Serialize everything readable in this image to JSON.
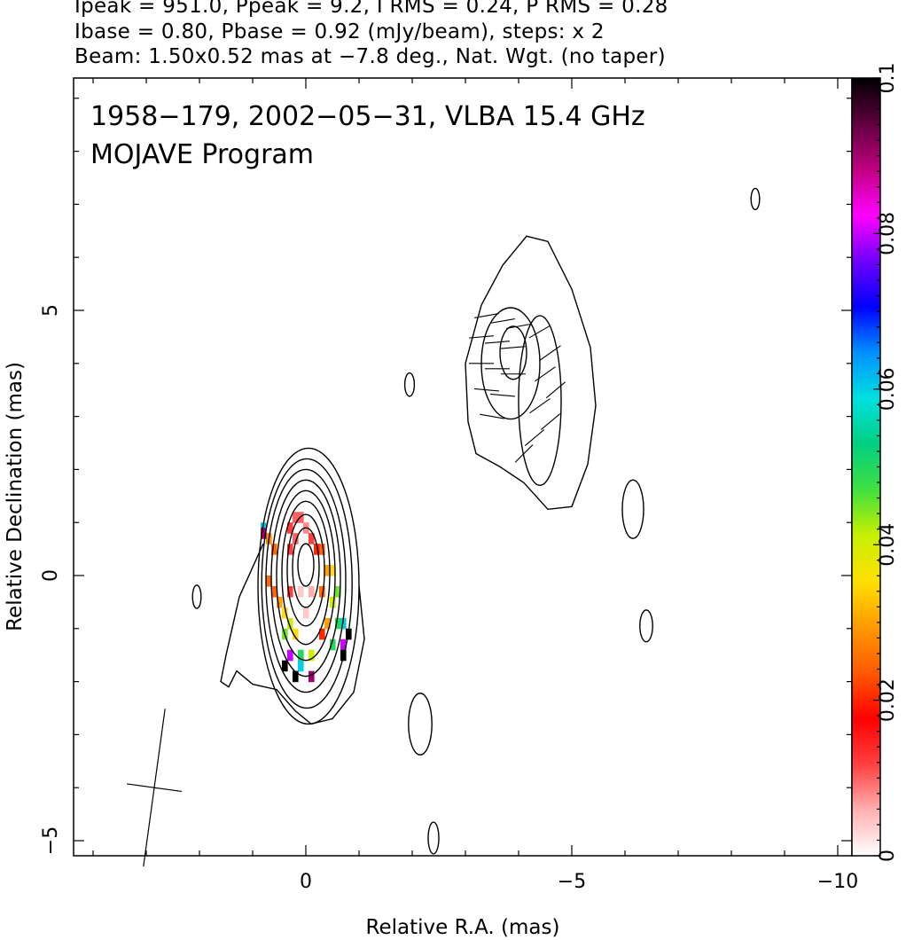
{
  "header": {
    "line1": "Ipeak = 951.0, Ppeak = 9.2, I RMS = 0.24, P RMS = 0.28",
    "line2": "Ibase = 0.80, Pbase = 0.92 (mJy/beam), steps: x 2",
    "line3": "Beam: 1.50x0.52 mas at −7.8 deg., Nat. Wgt. (no taper)"
  },
  "chart_data": {
    "type": "heatmap",
    "title_line1": "1958−179, 2002−05−31, VLBA 15.4 GHz",
    "title_line2": "MOJAVE Program",
    "xlabel": "Relative R.A. (mas)",
    "ylabel": "Relative Declination (mas)",
    "xlim": [
      4.4,
      -10.2
    ],
    "ylim": [
      -5.3,
      9.4
    ],
    "x_ticks": [
      0,
      -5,
      -10
    ],
    "x_tick_labels": [
      "0",
      "−5",
      "−10"
    ],
    "y_ticks": [
      -5,
      0,
      5
    ],
    "y_tick_labels": [
      "−5",
      "0",
      "5"
    ],
    "colorbar": {
      "range": [
        0,
        0.1
      ],
      "ticks": [
        0,
        0.02,
        0.04,
        0.06,
        0.08,
        0.1
      ],
      "tick_labels": [
        "0",
        "0.02",
        "0.04",
        "0.06",
        "0.08",
        "0.1"
      ],
      "colors": [
        "#ffffff",
        "#ffb0b0",
        "#ff4040",
        "#ff0000",
        "#ff5a00",
        "#ff9a00",
        "#ffe000",
        "#c8f000",
        "#40e040",
        "#00d080",
        "#00e0e0",
        "#0090ff",
        "#0000ff",
        "#7000ff",
        "#ff00ff",
        "#c00080",
        "#600040",
        "#000000"
      ]
    },
    "contours": [
      {
        "component": "core",
        "x": 0.0,
        "y": 0.2,
        "rx": 0.15,
        "ry": 0.4
      },
      {
        "component": "core",
        "x": 0.0,
        "y": 0.15,
        "rx": 0.25,
        "ry": 0.75
      },
      {
        "component": "core",
        "x": 0.0,
        "y": 0.1,
        "rx": 0.35,
        "ry": 1.05
      },
      {
        "component": "core",
        "x": 0.0,
        "y": 0.05,
        "rx": 0.45,
        "ry": 1.35
      },
      {
        "component": "core",
        "x": 0.0,
        "y": 0.0,
        "rx": 0.55,
        "ry": 1.6
      },
      {
        "component": "core",
        "x": 0.0,
        "y": -0.05,
        "rx": 0.65,
        "ry": 1.85
      },
      {
        "component": "core",
        "x": 0.0,
        "y": -0.1,
        "rx": 0.75,
        "ry": 2.1
      },
      {
        "component": "core",
        "x": -0.02,
        "y": -0.15,
        "rx": 0.85,
        "ry": 2.35
      },
      {
        "component": "core",
        "x": -0.05,
        "y": -0.2,
        "rx": 0.95,
        "ry": 2.6
      },
      {
        "component": "jet",
        "x": -3.9,
        "y": 4.2,
        "rx": 0.25,
        "ry": 0.5
      },
      {
        "component": "jet",
        "x": -3.85,
        "y": 4.0,
        "rx": 0.55,
        "ry": 1.05
      },
      {
        "component": "jet",
        "x": -4.4,
        "y": 3.3,
        "rx": 0.4,
        "ry": 1.6
      },
      {
        "component": "noise",
        "x": 2.05,
        "y": -0.4,
        "rx": 0.08,
        "ry": 0.22
      },
      {
        "component": "noise",
        "x": -1.95,
        "y": 3.6,
        "rx": 0.09,
        "ry": 0.22
      },
      {
        "component": "noise",
        "x": -6.15,
        "y": 1.25,
        "rx": 0.2,
        "ry": 0.55
      },
      {
        "component": "noise",
        "x": -6.4,
        "y": -0.95,
        "rx": 0.12,
        "ry": 0.3
      },
      {
        "component": "noise",
        "x": -2.15,
        "y": -2.8,
        "rx": 0.22,
        "ry": 0.58
      },
      {
        "component": "noise",
        "x": -2.4,
        "y": -4.95,
        "rx": 0.1,
        "ry": 0.3
      },
      {
        "component": "noise",
        "x": -8.45,
        "y": 7.1,
        "rx": 0.08,
        "ry": 0.2
      }
    ],
    "outer_contour_jet": [
      [
        -3.05,
        2.9
      ],
      [
        -3.0,
        4.0
      ],
      [
        -3.3,
        5.1
      ],
      [
        -3.7,
        5.85
      ],
      [
        -4.15,
        6.4
      ],
      [
        -4.55,
        6.3
      ],
      [
        -5.0,
        5.4
      ],
      [
        -5.35,
        4.3
      ],
      [
        -5.45,
        3.2
      ],
      [
        -5.3,
        2.1
      ],
      [
        -5.0,
        1.3
      ],
      [
        -4.55,
        1.25
      ],
      [
        -4.1,
        1.75
      ],
      [
        -3.65,
        2.05
      ],
      [
        -3.2,
        2.3
      ],
      [
        -3.05,
        2.9
      ]
    ],
    "core_tail_contour": [
      [
        0.8,
        0.6
      ],
      [
        1.25,
        -0.4
      ],
      [
        1.5,
        -1.5
      ],
      [
        1.6,
        -2.0
      ],
      [
        1.45,
        -2.1
      ],
      [
        1.3,
        -1.8
      ],
      [
        1.0,
        -2.05
      ],
      [
        0.55,
        -2.15
      ],
      [
        0.2,
        -2.55
      ],
      [
        -0.1,
        -2.8
      ],
      [
        -0.5,
        -2.7
      ],
      [
        -0.9,
        -2.2
      ],
      [
        -1.1,
        -1.2
      ],
      [
        -1.0,
        -0.2
      ]
    ],
    "pol_pixels": [
      {
        "x": 0.2,
        "y": 1.1,
        "v": 0.01
      },
      {
        "x": 0.1,
        "y": 1.1,
        "v": 0.01
      },
      {
        "x": 0.3,
        "y": 0.9,
        "v": 0.012
      },
      {
        "x": 0.0,
        "y": 0.9,
        "v": 0.008
      },
      {
        "x": 0.2,
        "y": 0.7,
        "v": 0.01
      },
      {
        "x": -0.1,
        "y": 0.7,
        "v": 0.012
      },
      {
        "x": -0.3,
        "y": 0.5,
        "v": 0.025
      },
      {
        "x": -0.2,
        "y": 0.5,
        "v": 0.02
      },
      {
        "x": 0.3,
        "y": 0.5,
        "v": 0.012
      },
      {
        "x": 0.6,
        "y": 0.5,
        "v": 0.025
      },
      {
        "x": 0.7,
        "y": 0.7,
        "v": 0.028
      },
      {
        "x": 0.8,
        "y": 0.9,
        "v": 0.06
      },
      {
        "x": 0.8,
        "y": 0.8,
        "v": 0.09
      },
      {
        "x": -0.5,
        "y": 0.1,
        "v": 0.035
      },
      {
        "x": -0.4,
        "y": 0.1,
        "v": 0.03
      },
      {
        "x": -0.6,
        "y": -0.3,
        "v": 0.045
      },
      {
        "x": -0.5,
        "y": -0.5,
        "v": 0.04
      },
      {
        "x": -0.3,
        "y": -0.3,
        "v": 0.025
      },
      {
        "x": -0.1,
        "y": -0.3,
        "v": 0.006
      },
      {
        "x": 0.1,
        "y": -0.3,
        "v": 0.004
      },
      {
        "x": 0.3,
        "y": -0.3,
        "v": 0.012
      },
      {
        "x": 0.5,
        "y": -0.5,
        "v": 0.03
      },
      {
        "x": 0.6,
        "y": -0.3,
        "v": 0.025
      },
      {
        "x": 0.7,
        "y": -0.1,
        "v": 0.025
      },
      {
        "x": -0.7,
        "y": -0.9,
        "v": 0.06
      },
      {
        "x": -0.6,
        "y": -0.9,
        "v": 0.05
      },
      {
        "x": -0.4,
        "y": -0.9,
        "v": 0.03
      },
      {
        "x": 0.0,
        "y": -0.7,
        "v": 0.004
      },
      {
        "x": 0.4,
        "y": -0.7,
        "v": 0.035
      },
      {
        "x": 0.3,
        "y": -0.9,
        "v": 0.04
      },
      {
        "x": -0.8,
        "y": -1.1,
        "v": 0.1
      },
      {
        "x": -0.7,
        "y": -1.3,
        "v": 0.08
      },
      {
        "x": -0.5,
        "y": -1.3,
        "v": 0.05
      },
      {
        "x": -0.3,
        "y": -1.1,
        "v": 0.02
      },
      {
        "x": 0.2,
        "y": -1.1,
        "v": 0.035
      },
      {
        "x": 0.4,
        "y": -1.1,
        "v": 0.045
      },
      {
        "x": -0.7,
        "y": -1.5,
        "v": 0.1
      },
      {
        "x": -0.1,
        "y": -1.5,
        "v": 0.04
      },
      {
        "x": 0.1,
        "y": -1.5,
        "v": 0.05
      },
      {
        "x": 0.3,
        "y": -1.5,
        "v": 0.08
      },
      {
        "x": 0.4,
        "y": -1.7,
        "v": 0.1
      },
      {
        "x": 0.1,
        "y": -1.7,
        "v": 0.06
      },
      {
        "x": -0.1,
        "y": -1.9,
        "v": 0.09
      },
      {
        "x": 0.2,
        "y": -1.9,
        "v": 0.1
      }
    ],
    "evpa_sticks": [
      {
        "x": -3.4,
        "y": 4.9,
        "angle": 80
      },
      {
        "x": -3.7,
        "y": 4.8,
        "angle": 80
      },
      {
        "x": -4.0,
        "y": 4.7,
        "angle": 80
      },
      {
        "x": -3.3,
        "y": 4.5,
        "angle": 85
      },
      {
        "x": -3.6,
        "y": 4.4,
        "angle": 85
      },
      {
        "x": -3.9,
        "y": 4.3,
        "angle": 85
      },
      {
        "x": -3.3,
        "y": 4.0,
        "angle": 90
      },
      {
        "x": -3.6,
        "y": 3.9,
        "angle": 90
      },
      {
        "x": -3.9,
        "y": 3.8,
        "angle": 90
      },
      {
        "x": -3.4,
        "y": 3.5,
        "angle": 95
      },
      {
        "x": -3.7,
        "y": 3.4,
        "angle": 95
      },
      {
        "x": -3.5,
        "y": 3.0,
        "angle": 100
      },
      {
        "x": -4.4,
        "y": 4.6,
        "angle": 60
      },
      {
        "x": -4.6,
        "y": 4.2,
        "angle": 55
      },
      {
        "x": -4.5,
        "y": 3.8,
        "angle": 55
      },
      {
        "x": -4.7,
        "y": 3.5,
        "angle": 50
      },
      {
        "x": -4.4,
        "y": 3.2,
        "angle": 55
      },
      {
        "x": -4.6,
        "y": 2.9,
        "angle": 50
      },
      {
        "x": -4.3,
        "y": 2.6,
        "angle": 50
      },
      {
        "x": -4.1,
        "y": 2.3,
        "angle": 45
      }
    ],
    "beam": {
      "x": 2.85,
      "y": -4.0,
      "major": 1.5,
      "minor": 0.52,
      "pa_deg": -7.8
    }
  }
}
